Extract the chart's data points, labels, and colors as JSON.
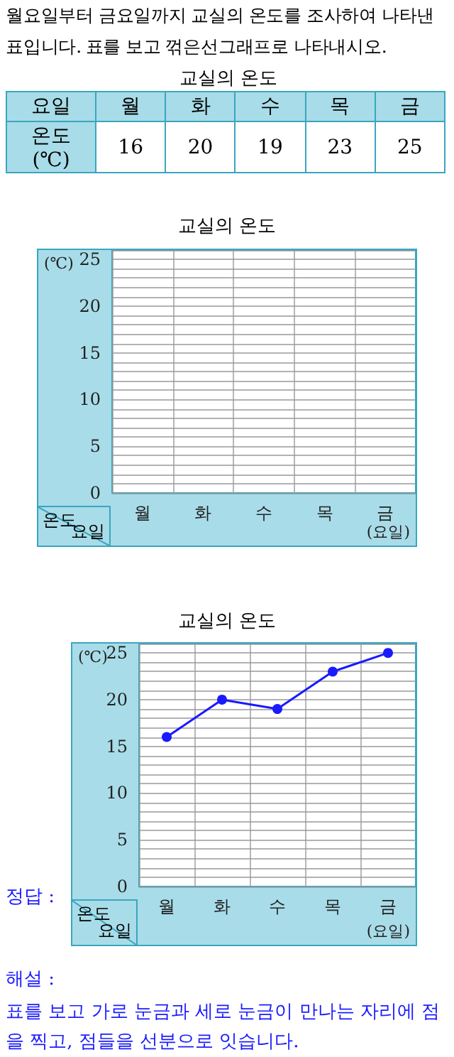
{
  "chart_data": [
    {
      "type": "other",
      "title": "월요일부터 금요일까지 교실의 온도를 조사하여 나타낸 표입니다. 표를 보고 꺾은선그래프로 나타내시오.",
      "subtitle": "교실의 온도",
      "xlabel": "요일",
      "ylabel": "온도 (℃)",
      "categories": [
        "월",
        "화",
        "수",
        "목",
        "금"
      ],
      "values": [
        16,
        20,
        19,
        23,
        25
      ],
      "data_labels": true
    },
    {
      "type": "line",
      "title": "교실의 온도",
      "xlabel": "(요일)",
      "ylabel": "(℃)",
      "annotations": [
        "온도",
        "요일"
      ],
      "categories": [
        "월",
        "화",
        "수",
        "목",
        "금"
      ],
      "values": [
        null,
        null,
        null,
        null,
        null
      ],
      "ylim": [
        0,
        26
      ],
      "yticks": [
        0,
        {
          "value": 1,
          "label": null
        },
        {
          "value": 2,
          "label": null
        },
        {
          "value": 3,
          "label": null
        },
        {
          "value": 4,
          "label": null
        },
        5,
        {
          "value": 6,
          "label": null
        },
        {
          "value": 7,
          "label": null
        },
        {
          "value": 8,
          "label": null
        },
        {
          "value": 9,
          "label": null
        },
        10,
        {
          "value": 11,
          "label": null
        },
        {
          "value": 12,
          "label": null
        },
        {
          "value": 13,
          "label": null
        },
        {
          "value": 14,
          "label": null
        },
        15,
        {
          "value": 16,
          "label": null
        },
        {
          "value": 17,
          "label": null
        },
        {
          "value": 18,
          "label": null
        },
        {
          "value": 19,
          "label": null
        },
        20,
        {
          "value": 21,
          "label": null
        },
        {
          "value": 22,
          "label": null
        },
        {
          "value": 23,
          "label": null
        },
        {
          "value": 24,
          "label": null
        },
        25,
        {
          "value": 26,
          "label": null
        }
      ],
      "grid": true
    },
    {
      "type": "line",
      "title": "교실의 온도",
      "xlabel": "(요일)",
      "ylabel": "(℃)",
      "annotations": [
        "온도",
        "요일",
        "정답 :",
        "해설 :",
        "표를 보고 가로 눈금과 세로 눈금이 만나는 자리에 점을 찍고, 점들을 선분으로 잇습니다."
      ],
      "categories": [
        "월",
        "화",
        "수",
        "목",
        "금"
      ],
      "values": [
        16,
        20,
        19,
        23,
        25
      ],
      "color": "#1a1aff",
      "marker": "circle",
      "ylim": [
        0,
        26
      ],
      "yticks": [
        0,
        {
          "value": 1,
          "label": null
        },
        {
          "value": 2,
          "label": null
        },
        {
          "value": 3,
          "label": null
        },
        {
          "value": 4,
          "label": null
        },
        5,
        {
          "value": 6,
          "label": null
        },
        {
          "value": 7,
          "label": null
        },
        {
          "value": 8,
          "label": null
        },
        {
          "value": 9,
          "label": null
        },
        10,
        {
          "value": 11,
          "label": null
        },
        {
          "value": 12,
          "label": null
        },
        {
          "value": 13,
          "label": null
        },
        {
          "value": 14,
          "label": null
        },
        15,
        {
          "value": 16,
          "label": null
        },
        {
          "value": 17,
          "label": null
        },
        {
          "value": 18,
          "label": null
        },
        {
          "value": 19,
          "label": null
        },
        20,
        {
          "value": 21,
          "label": null
        },
        {
          "value": 22,
          "label": null
        },
        {
          "value": 23,
          "label": null
        },
        {
          "value": 24,
          "label": null
        },
        25,
        {
          "value": 26,
          "label": null
        }
      ],
      "grid": true
    }
  ]
}
